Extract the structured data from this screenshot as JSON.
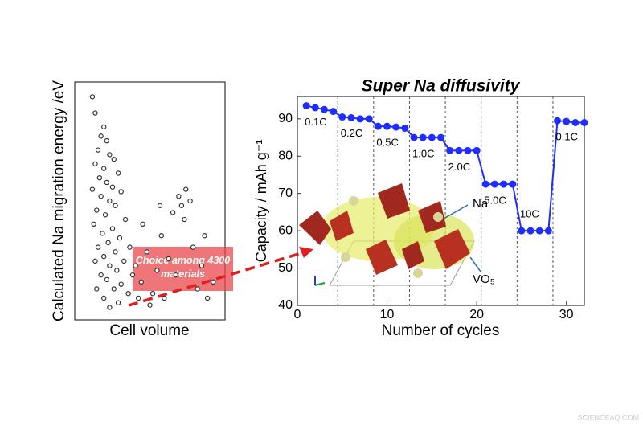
{
  "chart_data": [
    {
      "type": "scatter",
      "ylabel": "Calculated Na migration energy /eV",
      "xlabel": "Cell volume",
      "xlim": [
        0,
        100
      ],
      "ylim": [
        0,
        100
      ],
      "color": "#333333",
      "x": [
        10,
        12,
        18,
        16,
        20,
        14,
        22,
        25,
        12,
        18,
        28,
        15,
        20,
        24,
        10,
        30,
        16,
        22,
        26,
        13,
        19,
        33,
        11,
        24,
        17,
        29,
        21,
        14,
        36,
        26,
        18,
        12,
        32,
        22,
        27,
        16,
        38,
        20,
        30,
        13,
        25,
        35,
        18,
        28,
        22,
        40,
        44,
        48,
        52,
        55,
        58,
        60,
        63,
        66,
        70,
        72,
        75,
        78,
        74,
        80,
        83,
        86,
        90,
        94,
        68,
        57,
        45,
        50,
        88,
        42
      ],
      "values": [
        95,
        88,
        82,
        78,
        76,
        72,
        70,
        68,
        66,
        64,
        62,
        60,
        58,
        56,
        55,
        54,
        52,
        50,
        48,
        46,
        44,
        42,
        40,
        38,
        36,
        34,
        32,
        30,
        30,
        28,
        26,
        24,
        24,
        22,
        20,
        18,
        18,
        16,
        14,
        12,
        12,
        10,
        8,
        6,
        4,
        22,
        15,
        28,
        10,
        20,
        35,
        8,
        25,
        45,
        52,
        48,
        55,
        50,
        42,
        30,
        12,
        22,
        8,
        15,
        18,
        48,
        40,
        5,
        35,
        8
      ],
      "annotation": "Choice among 4300 materials"
    },
    {
      "type": "line",
      "title": "Super Na diffusivity",
      "xlabel": "Number of cycles",
      "ylabel": "Capacity / mAh g⁻¹",
      "xlim": [
        0,
        32
      ],
      "ylim": [
        40,
        96
      ],
      "xticks": [
        0,
        10,
        20,
        30
      ],
      "yticks": [
        40,
        50,
        60,
        70,
        80,
        90
      ],
      "dividers": [
        4.5,
        8.5,
        12.5,
        16.5,
        20.5,
        24.5,
        28.5
      ],
      "rate_labels": [
        "0.1C",
        "0.2C",
        "0.5C",
        "1.0C",
        "2.0C",
        "5.0C",
        "10C",
        "0.1C"
      ],
      "structure_labels": [
        "Na",
        "VO₅"
      ],
      "series": [
        {
          "color": "#1f2eff",
          "x": [
            1,
            2,
            3,
            4,
            5,
            6,
            7,
            8,
            9,
            10,
            11,
            12,
            13,
            14,
            15,
            16,
            17,
            18,
            19,
            20,
            21,
            22,
            23,
            24,
            25,
            26,
            27,
            28,
            29,
            30,
            31,
            32
          ],
          "values": [
            93.5,
            93,
            92.5,
            92,
            90.5,
            90.3,
            90,
            90,
            88,
            88,
            87.8,
            87.5,
            85,
            85,
            85,
            85,
            81.5,
            81.5,
            81.5,
            81.5,
            72.5,
            72.5,
            72.5,
            72.5,
            60,
            60,
            60,
            60,
            89.5,
            89.3,
            89,
            89
          ]
        }
      ]
    }
  ],
  "watermark": "SCIENCEAQ.COM"
}
